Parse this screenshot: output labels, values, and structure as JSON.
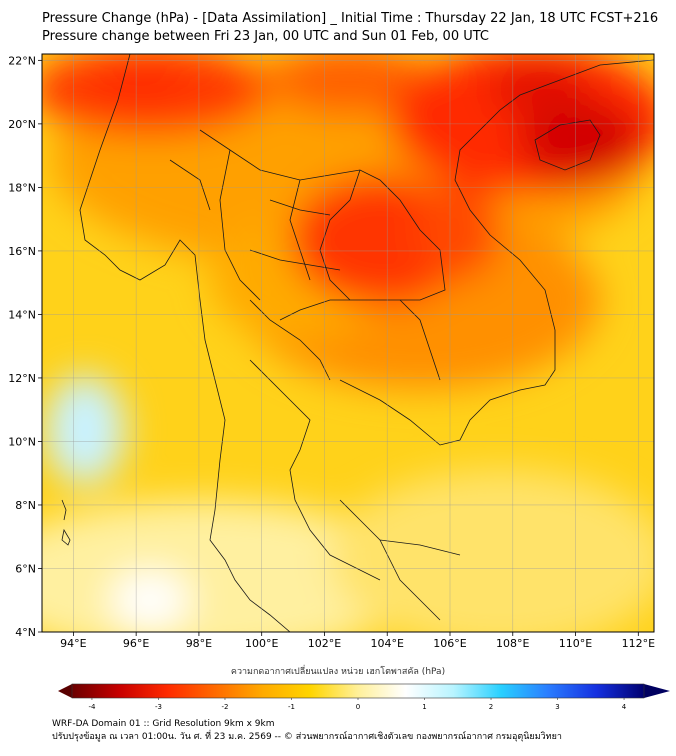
{
  "header": {
    "title_line1": "Pressure Change (hPa) - [Data Assimilation] _ Initial Time : Thursday 22 Jan, 18 UTC FCST+216",
    "title_line2": "Pressure change between Fri 23 Jan, 00 UTC and Sun 01 Feb, 00 UTC"
  },
  "map": {
    "lat_labels": [
      "22°N",
      "20°N",
      "18°N",
      "16°N",
      "14°N",
      "12°N",
      "10°N",
      "8°N",
      "6°N",
      "4°N"
    ],
    "lon_labels": [
      "94°E",
      "96°E",
      "98°E",
      "100°E",
      "102°E",
      "104°E",
      "106°E",
      "108°E",
      "110°E",
      "112°E"
    ],
    "lat_values": [
      22,
      20,
      18,
      16,
      14,
      12,
      10,
      8,
      6,
      4
    ],
    "lon_values": [
      94,
      96,
      98,
      100,
      102,
      104,
      106,
      108,
      110,
      112
    ],
    "extent": {
      "lon_min": 93,
      "lon_max": 112.5,
      "lat_min": 4,
      "lat_max": 22.2
    }
  },
  "colorbar": {
    "label": "ความกดอากาศเปลี่ยนแปลง หน่วย เฮกโตพาสคัล (hPa)",
    "ticks": [
      "-4",
      "-3",
      "-2",
      "-1",
      "0",
      "1",
      "2",
      "3",
      "4"
    ],
    "tick_values": [
      -4,
      -3,
      -2,
      -1,
      0,
      1,
      2,
      3,
      4
    ],
    "min": -4.3,
    "max": 4.3,
    "colors": [
      "#6b0000",
      "#c80000",
      "#ff2a00",
      "#ff6a00",
      "#ffaa00",
      "#ffd500",
      "#fff09a",
      "#ffffff",
      "#b8f4ff",
      "#28d0ff",
      "#2a7cff",
      "#1530e0",
      "#000070"
    ]
  },
  "footer": {
    "line1": "WRF-DA Domain 01 :: Grid Resolution 9km x 9km",
    "line2": "ปรับปรุงข้อมูล ณ เวลา 01:00น. วัน ศ. ที่ 23 ม.ค. 2569 -- © ส่วนพยากรณ์อากาศเชิงตัวเลข กองพยากรณ์อากาศ กรมอุตุนิยมวิทยา"
  }
}
